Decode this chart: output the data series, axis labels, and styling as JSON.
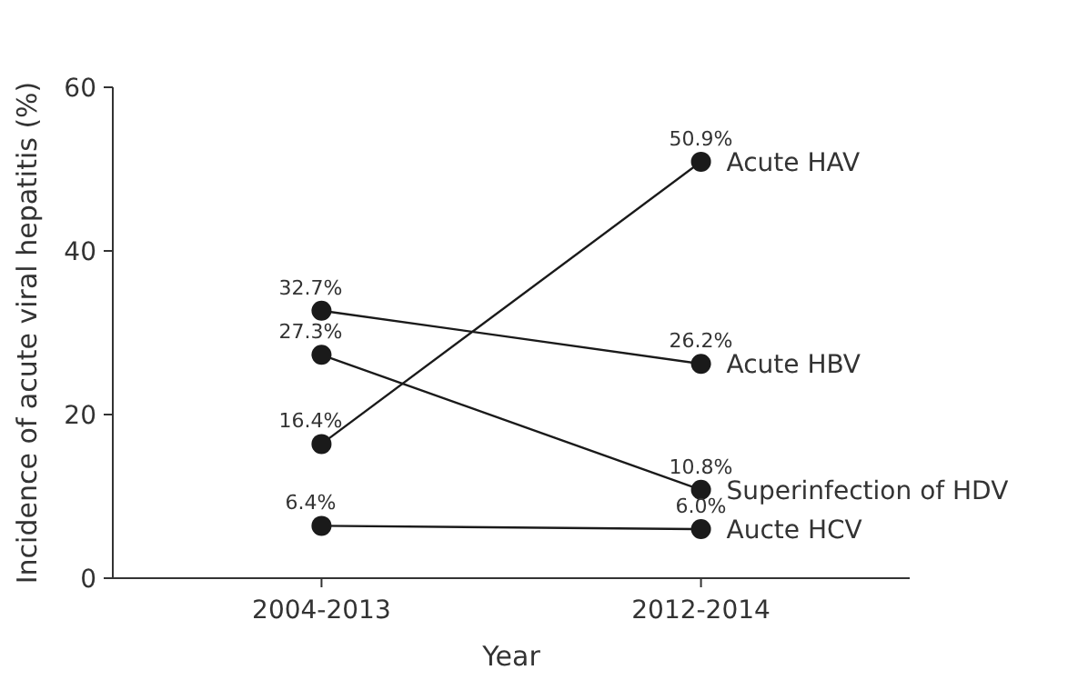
{
  "chart_data": {
    "type": "line",
    "xlabel": "Year",
    "ylabel": "Incidence of acute viral hepatitis (%)",
    "categories": [
      "2004-2013",
      "2012-2014"
    ],
    "ylim": [
      0,
      60
    ],
    "yticks": [
      0,
      20,
      40,
      60
    ],
    "marker": "circle",
    "series": [
      {
        "name": "Acute HAV",
        "color": "#1a1a1a",
        "values": [
          16.4,
          50.9
        ],
        "value_labels": [
          "16.4%",
          "50.9%"
        ]
      },
      {
        "name": "Acute HBV",
        "color": "#1a1a1a",
        "values": [
          32.7,
          26.2
        ],
        "value_labels": [
          "32.7%",
          "26.2%"
        ]
      },
      {
        "name": "Superinfection of HDV",
        "color": "#1a1a1a",
        "values": [
          27.3,
          10.8
        ],
        "value_labels": [
          "27.3%",
          "10.8%"
        ]
      },
      {
        "name": "Aucte HCV",
        "color": "#1a1a1a",
        "values": [
          6.4,
          6.0
        ],
        "value_labels": [
          "6.4%",
          "6.0%"
        ]
      }
    ]
  }
}
